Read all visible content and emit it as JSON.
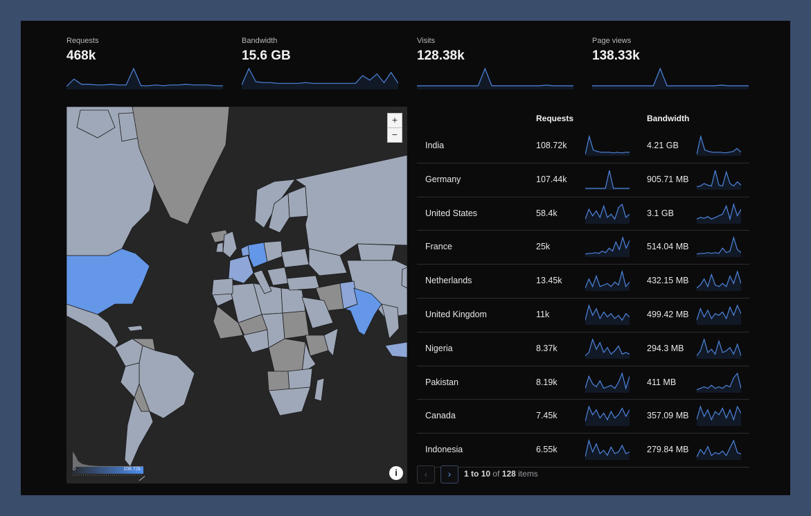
{
  "metrics": [
    {
      "label": "Requests",
      "value": "468k",
      "spark": [
        2,
        12,
        5,
        5,
        4,
        4,
        5,
        4,
        4,
        26,
        3,
        3,
        4,
        3,
        4,
        4,
        5,
        4,
        4,
        4,
        3,
        3
      ]
    },
    {
      "label": "Bandwidth",
      "value": "15.6 GB",
      "spark": [
        4,
        25,
        8,
        7,
        7,
        6,
        6,
        6,
        6,
        7,
        6,
        6,
        6,
        6,
        6,
        6,
        6,
        16,
        10,
        18,
        7,
        20,
        6
      ]
    },
    {
      "label": "Visits",
      "value": "128.38k",
      "spark": [
        3,
        3,
        3,
        3,
        3,
        3,
        3,
        3,
        3,
        3,
        27,
        3,
        3,
        3,
        3,
        3,
        3,
        3,
        3,
        4,
        3,
        3,
        3,
        3
      ]
    },
    {
      "label": "Page views",
      "value": "138.33k",
      "spark": [
        3,
        3,
        3,
        3,
        3,
        3,
        3,
        3,
        3,
        3,
        27,
        3,
        3,
        3,
        3,
        3,
        3,
        3,
        3,
        4,
        3,
        3,
        3,
        3
      ]
    }
  ],
  "map": {
    "zoom_in": "+",
    "zoom_out": "−",
    "legend_min": "0",
    "legend_max": "108.72k",
    "info": "i",
    "highlight_color": "#6497e8",
    "land_color": "#9fa8b8",
    "ocean_color": "#262627"
  },
  "table": {
    "col_requests": "Requests",
    "col_bandwidth": "Bandwidth",
    "rows": [
      {
        "country": "India",
        "requests": "108.72k",
        "bandwidth": "4.21 GB",
        "sp1": [
          0,
          24,
          6,
          4,
          3,
          3,
          3,
          2,
          3,
          2,
          3,
          3
        ],
        "sp2": [
          0,
          24,
          6,
          4,
          3,
          3,
          3,
          2,
          3,
          4,
          8,
          3
        ]
      },
      {
        "country": "Germany",
        "requests": "107.44k",
        "bandwidth": "905.71 MB",
        "sp1": [
          0,
          0,
          0,
          0,
          0,
          0,
          24,
          0,
          0,
          0,
          0,
          0
        ],
        "sp2": [
          2,
          3,
          6,
          4,
          3,
          22,
          4,
          3,
          20,
          6,
          3,
          8,
          4
        ]
      },
      {
        "country": "United States",
        "requests": "58.4k",
        "bandwidth": "3.1 GB",
        "sp1": [
          4,
          16,
          8,
          14,
          6,
          20,
          6,
          10,
          4,
          18,
          22,
          6,
          10
        ],
        "sp2": [
          4,
          6,
          5,
          7,
          4,
          6,
          8,
          10,
          20,
          4,
          22,
          8,
          16
        ]
      },
      {
        "country": "France",
        "requests": "25k",
        "bandwidth": "514.04 MB",
        "sp1": [
          2,
          3,
          3,
          4,
          3,
          6,
          4,
          10,
          6,
          18,
          8,
          24,
          10,
          20
        ],
        "sp2": [
          2,
          3,
          3,
          4,
          3,
          4,
          3,
          10,
          4,
          6,
          24,
          8,
          4
        ]
      },
      {
        "country": "Netherlands",
        "requests": "13.45k",
        "bandwidth": "432.15 MB",
        "sp1": [
          2,
          14,
          4,
          18,
          4,
          6,
          8,
          4,
          10,
          6,
          24,
          4,
          10
        ],
        "sp2": [
          2,
          6,
          14,
          4,
          20,
          6,
          4,
          8,
          4,
          18,
          8,
          24,
          8
        ]
      },
      {
        "country": "United Kingdom",
        "requests": "11k",
        "bandwidth": "499.42 MB",
        "sp1": [
          4,
          22,
          10,
          18,
          6,
          14,
          8,
          12,
          6,
          10,
          4,
          12,
          8
        ],
        "sp2": [
          4,
          18,
          8,
          16,
          6,
          12,
          10,
          14,
          6,
          20,
          10,
          22,
          12
        ]
      },
      {
        "country": "Nigeria",
        "requests": "8.37k",
        "bandwidth": "294.3 MB",
        "sp1": [
          2,
          6,
          22,
          10,
          18,
          6,
          12,
          4,
          8,
          14,
          4,
          6,
          4
        ],
        "sp2": [
          2,
          8,
          22,
          6,
          10,
          4,
          20,
          6,
          8,
          12,
          4,
          16,
          2
        ]
      },
      {
        "country": "Pakistan",
        "requests": "8.19k",
        "bandwidth": "411 MB",
        "sp1": [
          4,
          20,
          10,
          6,
          14,
          4,
          6,
          8,
          4,
          12,
          24,
          4,
          20
        ],
        "sp2": [
          2,
          4,
          6,
          4,
          8,
          4,
          6,
          4,
          8,
          6,
          18,
          24,
          4
        ]
      },
      {
        "country": "Canada",
        "requests": "7.45k",
        "bandwidth": "357.09 MB",
        "sp1": [
          4,
          22,
          12,
          18,
          8,
          14,
          6,
          16,
          8,
          12,
          20,
          10,
          18
        ],
        "sp2": [
          6,
          22,
          10,
          18,
          6,
          16,
          12,
          20,
          8,
          18,
          6,
          22,
          14
        ]
      },
      {
        "country": "Indonesia",
        "requests": "6.55k",
        "bandwidth": "279.84 MB",
        "sp1": [
          2,
          22,
          8,
          18,
          6,
          10,
          4,
          14,
          6,
          8,
          16,
          6,
          8
        ],
        "sp2": [
          2,
          12,
          6,
          16,
          4,
          8,
          6,
          10,
          4,
          14,
          24,
          8,
          6
        ]
      }
    ]
  },
  "pager": {
    "prev": "‹",
    "next": "›",
    "from": "1",
    "to_word": "to",
    "to": "10",
    "of_word": "of",
    "total": "128",
    "items_word": "items"
  }
}
